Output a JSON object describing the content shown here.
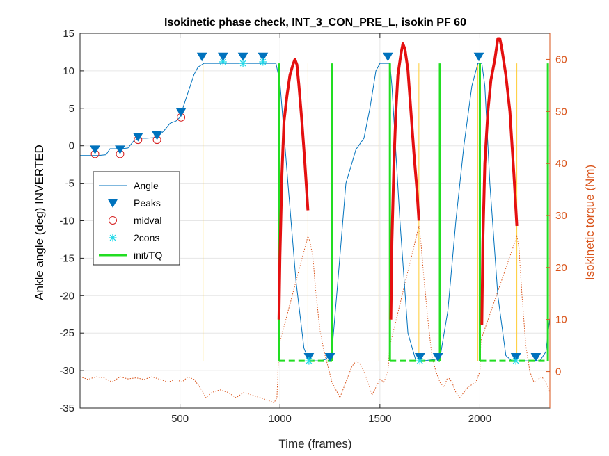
{
  "chart_data": {
    "type": "line",
    "title": "Isokinetic phase check, INT_3_CON_PRE_L, isokin PF 60",
    "xlabel": "Time (frames)",
    "ylabel_left": "Ankle angle (deg) INVERTED",
    "ylabel_right": "Isokinetic torque (Nm)",
    "xlim": [
      0,
      2350
    ],
    "ylim_left": [
      -35,
      15
    ],
    "ylim_right": [
      -7,
      65
    ],
    "x_ticks": [
      500,
      1000,
      1500,
      2000
    ],
    "y_ticks_left": [
      -35,
      -30,
      -25,
      -20,
      -15,
      -10,
      -5,
      0,
      5,
      10,
      15
    ],
    "y_ticks_right": [
      0,
      10,
      20,
      30,
      40,
      50,
      60
    ],
    "grid": true,
    "legend_placement": "middle-left",
    "colors": {
      "angle": "#0072bd",
      "peaks": "#0072bd",
      "midval": "#d62020",
      "twocons": "#1ed8e8",
      "init_tq": "#22dd22",
      "torque_thick": "#e41010",
      "torque_dotted": "#d95319",
      "orange_vlines": "#ffcc33",
      "right_axis": "#d95319"
    },
    "legend": [
      {
        "key": "angle",
        "label": "Angle"
      },
      {
        "key": "peaks",
        "label": "Peaks"
      },
      {
        "key": "midval",
        "label": "midval"
      },
      {
        "key": "twocons",
        "label": "2cons"
      },
      {
        "key": "init_tq",
        "label": "init/TQ"
      }
    ],
    "series": [
      {
        "name": "Angle",
        "axis": "left",
        "x": [
          0,
          90,
          130,
          150,
          210,
          240,
          270,
          295,
          330,
          385,
          420,
          450,
          480,
          500,
          520,
          545,
          570,
          590,
          620,
          650,
          700,
          800,
          900,
          980,
          1000,
          1040,
          1080,
          1120,
          1145,
          1170,
          1200,
          1230,
          1260,
          1290,
          1330,
          1380,
          1420,
          1450,
          1480,
          1500,
          1520,
          1550,
          1560,
          1600,
          1640,
          1680,
          1700,
          1720,
          1800,
          1840,
          1880,
          1920,
          1960,
          1990,
          2010,
          2025,
          2050,
          2090,
          2130,
          2160,
          2190,
          2250,
          2300,
          2330,
          2350
        ],
        "y": [
          -1.3,
          -1.3,
          -1.2,
          -0.4,
          -0.4,
          -0.3,
          0.7,
          1.0,
          1.0,
          1.1,
          2.0,
          3.0,
          3.3,
          3.8,
          5.5,
          7.5,
          9.5,
          10.5,
          11.0,
          11.0,
          11.0,
          11.0,
          11.0,
          11.0,
          8.5,
          -5,
          -18,
          -27,
          -28.7,
          -28.7,
          -28.7,
          -28.5,
          -27.5,
          -18,
          -5,
          -0.5,
          1.0,
          5,
          10,
          11.0,
          11.0,
          11.0,
          8,
          -10,
          -25,
          -28.7,
          -28.7,
          -28.7,
          -28.4,
          -22,
          -10,
          0,
          8,
          11.0,
          11.0,
          8,
          -5,
          -20,
          -28,
          -28.7,
          -28.7,
          -28.7,
          -28.7,
          -27.5,
          -23
        ]
      },
      {
        "name": "Peaks",
        "axis": "left",
        "x": [
          75,
          200,
          290,
          385,
          505,
          610,
          715,
          815,
          915,
          1145,
          1250,
          1540,
          1700,
          1790,
          1995,
          2180,
          2280
        ],
        "y": [
          -0.5,
          -0.5,
          1.2,
          1.4,
          4.5,
          11.9,
          11.9,
          11.9,
          11.9,
          -28.2,
          -28.2,
          11.9,
          -28.2,
          -28.2,
          11.9,
          -28.2,
          -28.2
        ]
      },
      {
        "name": "midval",
        "axis": "left",
        "x": [
          75,
          200,
          290,
          385,
          505
        ],
        "y": [
          -1.1,
          -1.1,
          0.8,
          0.8,
          3.8
        ]
      },
      {
        "name": "2cons",
        "axis": "left",
        "x": [
          715,
          815,
          915,
          1145,
          1700,
          2180
        ],
        "y": [
          11.2,
          11.0,
          11.2,
          -28.7,
          -28.7,
          -28.7
        ]
      },
      {
        "name": "init/TQ",
        "axis": "left",
        "x": [
          995,
          995,
          1260,
          1260,
          1260,
          1550,
          1550,
          1800,
          1800,
          1800,
          2000,
          2000,
          2340,
          2340
        ],
        "y": [
          11.0,
          -28.7,
          -28.7,
          11.0,
          null,
          11.0,
          -28.7,
          -28.7,
          11.0,
          null,
          11.0,
          -28.7,
          -28.7,
          11.0
        ]
      },
      {
        "name": "",
        "axis": "right",
        "style": "thick",
        "segments": [
          {
            "x": [
              995,
              1000,
              1010,
              1020,
              1035,
              1050,
              1065,
              1075,
              1085,
              1095,
              1110,
              1125,
              1140
            ],
            "y": [
              10,
              22,
              38,
              48,
              53,
              57,
              59,
              60,
              59,
              55,
              48,
              40,
              31
            ]
          },
          {
            "x": [
              1555,
              1560,
              1570,
              1580,
              1590,
              1605,
              1615,
              1625,
              1640,
              1655,
              1670,
              1685,
              1695
            ],
            "y": [
              10,
              25,
              40,
              50,
              57,
              61,
              63,
              62,
              58,
              50,
              42,
              35,
              29
            ]
          },
          {
            "x": [
              2010,
              2015,
              2025,
              2040,
              2055,
              2075,
              2090,
              2100,
              2110,
              2130,
              2150,
              2170,
              2185
            ],
            "y": [
              9,
              25,
              40,
              50,
              56,
              60,
              64,
              64,
              62,
              57,
              50,
              38,
              28
            ]
          }
        ]
      },
      {
        "name": "",
        "axis": "right",
        "style": "dotted",
        "x": [
          0,
          40,
          80,
          120,
          160,
          200,
          240,
          280,
          320,
          360,
          400,
          440,
          480,
          510,
          540,
          570,
          600,
          630,
          660,
          700,
          740,
          780,
          820,
          860,
          900,
          940,
          970,
          985,
          995,
          1140,
          1150,
          1165,
          1180,
          1200,
          1220,
          1240,
          1260,
          1280,
          1300,
          1320,
          1340,
          1360,
          1380,
          1400,
          1420,
          1440,
          1460,
          1480,
          1500,
          1520,
          1540,
          1550,
          1695,
          1705,
          1720,
          1740,
          1760,
          1780,
          1800,
          1820,
          1840,
          1860,
          1880,
          1900,
          1920,
          1940,
          1960,
          1980,
          2000,
          2005,
          2185,
          2195,
          2210,
          2230,
          2250,
          2270,
          2290,
          2310,
          2330,
          2350
        ],
        "y": [
          -1.0,
          -1.5,
          -1.0,
          -1.2,
          -2.0,
          -1.0,
          -1.4,
          -1.2,
          -1.5,
          -1.0,
          -1.5,
          -2.0,
          -1.5,
          -2.0,
          -1.0,
          -1.5,
          -3.0,
          -5.0,
          -4.0,
          -3.5,
          -4.0,
          -5.0,
          -4.0,
          -4.5,
          -5.0,
          -5.5,
          -6.0,
          -5.0,
          5.0,
          26.0,
          25.0,
          22.0,
          15.0,
          8.0,
          4.0,
          1.0,
          -2.0,
          -3.5,
          -5.0,
          -3.0,
          -1.0,
          1.0,
          2.0,
          1.5,
          0.0,
          -2.0,
          -4.5,
          -3.0,
          -1.5,
          -2.0,
          0.0,
          5.0,
          28.0,
          25.0,
          18.0,
          10.0,
          3.0,
          0.0,
          -2.0,
          -3.0,
          -1.0,
          -2.0,
          -4.0,
          -5.0,
          -4.0,
          -3.0,
          -2.5,
          -2.0,
          0.0,
          6.0,
          26.0,
          24.0,
          15.0,
          5.0,
          0.0,
          -2.0,
          -1.5,
          -1.0,
          -2.0,
          -4.0
        ]
      }
    ],
    "orange_vlines_x": [
      615,
      1000,
      1140,
      1495,
      1695,
      1990,
      2185
    ]
  }
}
